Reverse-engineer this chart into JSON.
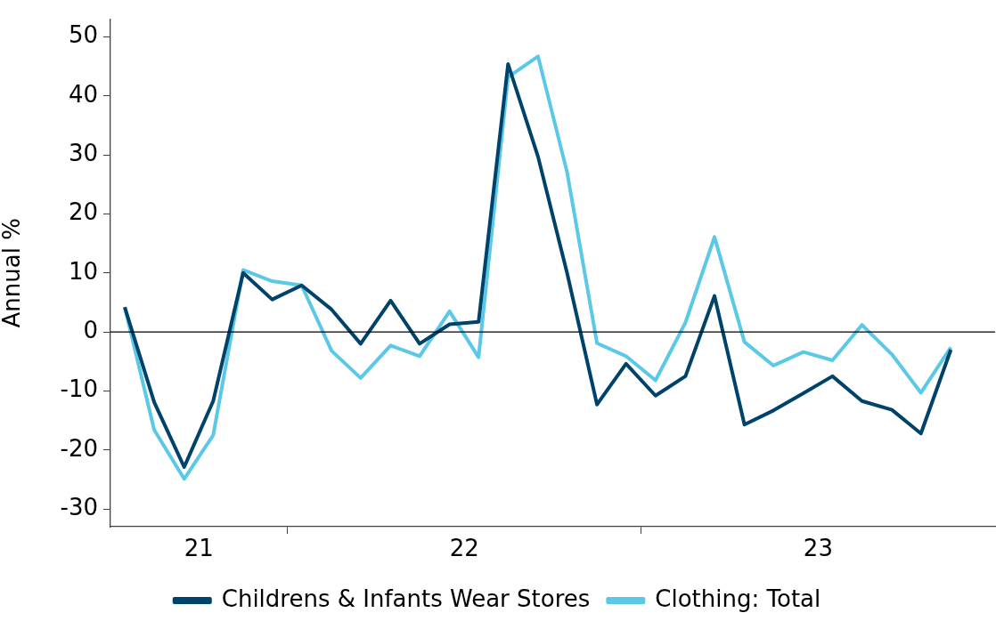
{
  "chart_data": {
    "type": "line",
    "ylabel": "Annual %",
    "x": [
      "2021-07-16",
      "2021-08-16",
      "2021-09-16",
      "2021-10-16",
      "2021-11-16",
      "2021-12-16",
      "2022-01-16",
      "2022-02-15",
      "2022-03-16",
      "2022-04-16",
      "2022-05-16",
      "2022-06-16",
      "2022-07-16",
      "2022-08-16",
      "2022-09-16",
      "2022-10-16",
      "2022-11-16",
      "2022-12-16",
      "2023-01-16",
      "2023-02-15",
      "2023-03-16",
      "2023-04-16",
      "2023-05-16",
      "2023-06-16",
      "2023-07-16",
      "2023-08-16",
      "2023-09-16",
      "2023-10-16",
      "2023-11-16"
    ],
    "xlim": [
      "2021-07-01",
      "2024-01-01"
    ],
    "xticks": [
      {
        "value": "2021-10-01",
        "label": "21"
      },
      {
        "value": "2022-01-01",
        "label": null
      },
      {
        "value": "2022-07-01",
        "label": "22"
      },
      {
        "value": "2023-01-01",
        "label": null
      },
      {
        "value": "2023-07-01",
        "label": "23"
      }
    ],
    "ylim": [
      -33,
      53
    ],
    "yticks": [
      -30,
      -20,
      -10,
      0,
      10,
      20,
      30,
      40,
      50
    ],
    "series": [
      {
        "name": "Childrens & Infants Wear Stores",
        "color": "#00436a",
        "values": [
          4.2,
          -11.9,
          -22.9,
          -11.7,
          10.0,
          5.5,
          7.9,
          3.8,
          -2.0,
          5.3,
          -2.0,
          1.3,
          1.7,
          45.4,
          29.7,
          10.0,
          -12.3,
          -5.4,
          -10.8,
          -7.5,
          6.1,
          -15.7,
          -13.3,
          -10.4,
          -7.5,
          -11.7,
          -13.2,
          -17.2,
          -3.0
        ]
      },
      {
        "name": "Clothing: Total",
        "color": "#5bc8e8",
        "values": [
          4.2,
          -16.6,
          -24.9,
          -17.5,
          10.5,
          8.6,
          7.9,
          -3.2,
          -7.8,
          -2.3,
          -4.1,
          3.5,
          -4.3,
          43.2,
          46.7,
          27.1,
          -1.9,
          -4.1,
          -8.2,
          1.6,
          16.1,
          -1.7,
          -5.7,
          -3.4,
          -4.8,
          1.2,
          -3.8,
          -10.3,
          -2.6
        ]
      }
    ],
    "ref_lines": [
      {
        "axis": "y",
        "value": 0,
        "color": "#000000"
      }
    ],
    "grid": false,
    "legend": "bottom",
    "marker": "none",
    "line_style": "solid"
  }
}
